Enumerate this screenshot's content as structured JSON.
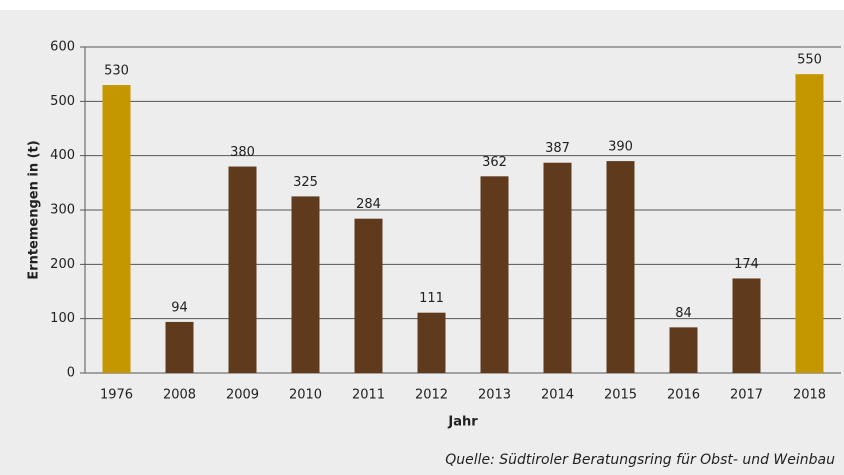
{
  "chart_data": {
    "type": "bar",
    "categories": [
      "1976",
      "2008",
      "2009",
      "2010",
      "2011",
      "2012",
      "2013",
      "2014",
      "2015",
      "2016",
      "2017",
      "2018"
    ],
    "values": [
      530,
      94,
      380,
      325,
      284,
      111,
      362,
      387,
      390,
      84,
      174,
      550
    ],
    "colors": [
      "#c49600",
      "#5f3a1d",
      "#5f3a1d",
      "#5f3a1d",
      "#5f3a1d",
      "#5f3a1d",
      "#5f3a1d",
      "#5f3a1d",
      "#5f3a1d",
      "#5f3a1d",
      "#5f3a1d",
      "#c49600"
    ],
    "ylim": [
      0,
      600
    ],
    "yticks": [
      0,
      100,
      200,
      300,
      400,
      500,
      600
    ],
    "grid": true,
    "y_label": "Erntemengen in (t)",
    "x_label": "Jahr",
    "source": "Quelle: Südtiroler Beratungsring für Obst- und Weinbau"
  }
}
